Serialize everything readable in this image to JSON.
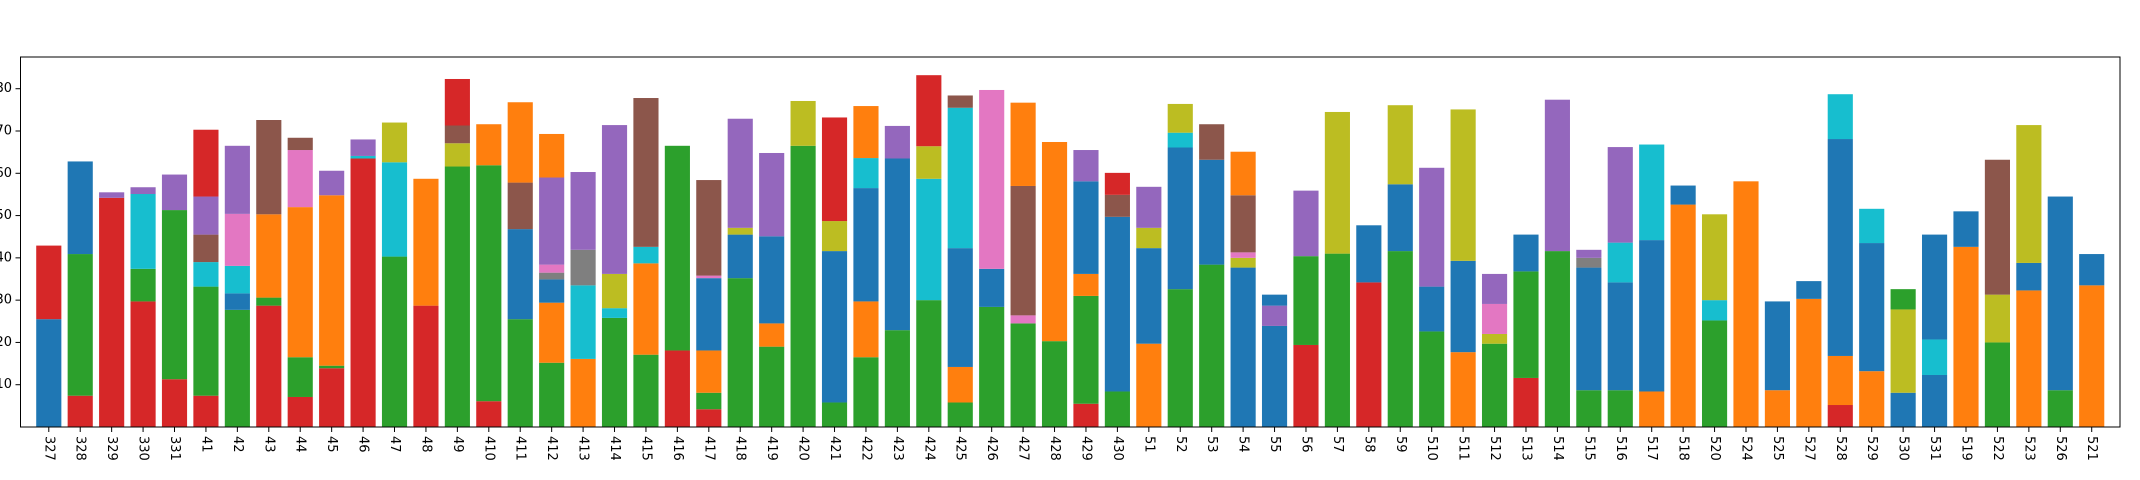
{
  "chart_data": {
    "type": "stacked_bar",
    "categories": [
      "327",
      "328",
      "329",
      "330",
      "331",
      "41",
      "42",
      "43",
      "44",
      "45",
      "46",
      "47",
      "48",
      "49",
      "410",
      "411",
      "412",
      "413",
      "414",
      "415",
      "416",
      "417",
      "418",
      "419",
      "420",
      "421",
      "422",
      "423",
      "424",
      "425",
      "426",
      "427",
      "428",
      "429",
      "430",
      "51",
      "52",
      "53",
      "54",
      "55",
      "56",
      "57",
      "58",
      "59",
      "510",
      "511",
      "512",
      "513",
      "514",
      "515",
      "516",
      "517",
      "518",
      "520",
      "524",
      "525",
      "527",
      "528",
      "529",
      "530",
      "531",
      "519",
      "522",
      "523",
      "526",
      "521"
    ],
    "segments": [
      [
        {
          "color": "#1f77b4",
          "value": 25.5
        },
        {
          "color": "#d62728",
          "value": 17.4
        }
      ],
      [
        {
          "color": "#d62728",
          "value": 7.4
        },
        {
          "color": "#2ca02c",
          "value": 33.5
        },
        {
          "color": "#1f77b4",
          "value": 21.9
        }
      ],
      [
        {
          "color": "#d62728",
          "value": 54.2
        },
        {
          "color": "#9467bd",
          "value": 1.3
        }
      ],
      [
        {
          "color": "#d62728",
          "value": 29.7
        },
        {
          "color": "#2ca02c",
          "value": 7.7
        },
        {
          "color": "#17becf",
          "value": 17.7
        },
        {
          "color": "#9467bd",
          "value": 1.6
        }
      ],
      [
        {
          "color": "#d62728",
          "value": 11.3
        },
        {
          "color": "#2ca02c",
          "value": 40
        },
        {
          "color": "#9467bd",
          "value": 8.4
        }
      ],
      [
        {
          "color": "#d62728",
          "value": 7.4
        },
        {
          "color": "#2ca02c",
          "value": 25.8
        },
        {
          "color": "#17becf",
          "value": 5.8
        },
        {
          "color": "#8c564b",
          "value": 6.5
        },
        {
          "color": "#9467bd",
          "value": 9
        },
        {
          "color": "#d62728",
          "value": 15.8
        }
      ],
      [
        {
          "color": "#2ca02c",
          "value": 27.7
        },
        {
          "color": "#1f77b4",
          "value": 3.9
        },
        {
          "color": "#17becf",
          "value": 6.5
        },
        {
          "color": "#e377c2",
          "value": 12.3
        },
        {
          "color": "#9467bd",
          "value": 16.1
        }
      ],
      [
        {
          "color": "#d62728",
          "value": 28.7
        },
        {
          "color": "#2ca02c",
          "value": 1.9
        },
        {
          "color": "#ff7f0e",
          "value": 19.7
        },
        {
          "color": "#8c564b",
          "value": 22.3
        }
      ],
      [
        {
          "color": "#d62728",
          "value": 7.1
        },
        {
          "color": "#2ca02c",
          "value": 9.4
        },
        {
          "color": "#ff7f0e",
          "value": 35.5
        },
        {
          "color": "#e377c2",
          "value": 13.5
        },
        {
          "color": "#8c564b",
          "value": 2.9
        }
      ],
      [
        {
          "color": "#d62728",
          "value": 13.9
        },
        {
          "color": "#2ca02c",
          "value": 0.6
        },
        {
          "color": "#ff7f0e",
          "value": 40.3
        },
        {
          "color": "#9467bd",
          "value": 5.8
        }
      ],
      [
        {
          "color": "#d62728",
          "value": 63.5
        },
        {
          "color": "#17becf",
          "value": 0.6
        },
        {
          "color": "#9467bd",
          "value": 3.9
        }
      ],
      [
        {
          "color": "#2ca02c",
          "value": 40.3
        },
        {
          "color": "#17becf",
          "value": 22.3
        },
        {
          "color": "#bcbd22",
          "value": 9.4
        }
      ],
      [
        {
          "color": "#d62728",
          "value": 28.7
        },
        {
          "color": "#ff7f0e",
          "value": 30
        }
      ],
      [
        {
          "color": "#2ca02c",
          "value": 61.6
        },
        {
          "color": "#bcbd22",
          "value": 5.5
        },
        {
          "color": "#8c564b",
          "value": 4.2
        },
        {
          "color": "#d62728",
          "value": 11
        }
      ],
      [
        {
          "color": "#d62728",
          "value": 6.1
        },
        {
          "color": "#2ca02c",
          "value": 55.8
        },
        {
          "color": "#ff7f0e",
          "value": 9.7
        }
      ],
      [
        {
          "color": "#2ca02c",
          "value": 25.5
        },
        {
          "color": "#1f77b4",
          "value": 21.3
        },
        {
          "color": "#8c564b",
          "value": 11
        },
        {
          "color": "#ff7f0e",
          "value": 19
        }
      ],
      [
        {
          "color": "#2ca02c",
          "value": 15.2
        },
        {
          "color": "#ff7f0e",
          "value": 14.2
        },
        {
          "color": "#1f77b4",
          "value": 5.5
        },
        {
          "color": "#7f7f7f",
          "value": 1.6
        },
        {
          "color": "#e377c2",
          "value": 1.9
        },
        {
          "color": "#9467bd",
          "value": 20.6
        },
        {
          "color": "#ff7f0e",
          "value": 10.3
        }
      ],
      [
        {
          "color": "#ff7f0e",
          "value": 16.1
        },
        {
          "color": "#17becf",
          "value": 17.4
        },
        {
          "color": "#7f7f7f",
          "value": 8.4
        },
        {
          "color": "#9467bd",
          "value": 18.4
        }
      ],
      [
        {
          "color": "#2ca02c",
          "value": 25.8
        },
        {
          "color": "#17becf",
          "value": 2.3
        },
        {
          "color": "#bcbd22",
          "value": 8.1
        },
        {
          "color": "#9467bd",
          "value": 35.2
        }
      ],
      [
        {
          "color": "#2ca02c",
          "value": 17.1
        },
        {
          "color": "#ff7f0e",
          "value": 21.6
        },
        {
          "color": "#17becf",
          "value": 3.9
        },
        {
          "color": "#8c564b",
          "value": 35.2
        }
      ],
      [
        {
          "color": "#d62728",
          "value": 18.1
        },
        {
          "color": "#2ca02c",
          "value": 48.4
        }
      ],
      [
        {
          "color": "#d62728",
          "value": 4.2
        },
        {
          "color": "#2ca02c",
          "value": 3.9
        },
        {
          "color": "#ff7f0e",
          "value": 10
        },
        {
          "color": "#1f77b4",
          "value": 17.1
        },
        {
          "color": "#e377c2",
          "value": 0.6
        },
        {
          "color": "#8c564b",
          "value": 22.6
        }
      ],
      [
        {
          "color": "#2ca02c",
          "value": 35.2
        },
        {
          "color": "#1f77b4",
          "value": 10.3
        },
        {
          "color": "#bcbd22",
          "value": 1.6
        },
        {
          "color": "#9467bd",
          "value": 25.8
        }
      ],
      [
        {
          "color": "#2ca02c",
          "value": 19
        },
        {
          "color": "#ff7f0e",
          "value": 5.5
        },
        {
          "color": "#1f77b4",
          "value": 20.6
        },
        {
          "color": "#9467bd",
          "value": 19.7
        }
      ],
      [
        {
          "color": "#2ca02c",
          "value": 66.5
        },
        {
          "color": "#bcbd22",
          "value": 10.6
        }
      ],
      [
        {
          "color": "#2ca02c",
          "value": 5.8
        },
        {
          "color": "#1f77b4",
          "value": 35.8
        },
        {
          "color": "#bcbd22",
          "value": 7.1
        },
        {
          "color": "#d62728",
          "value": 24.5
        }
      ],
      [
        {
          "color": "#2ca02c",
          "value": 16.5
        },
        {
          "color": "#ff7f0e",
          "value": 13.2
        },
        {
          "color": "#1f77b4",
          "value": 26.8
        },
        {
          "color": "#17becf",
          "value": 7.1
        },
        {
          "color": "#ff7f0e",
          "value": 12.3
        }
      ],
      [
        {
          "color": "#2ca02c",
          "value": 22.9
        },
        {
          "color": "#1f77b4",
          "value": 40.6
        },
        {
          "color": "#9467bd",
          "value": 7.7
        }
      ],
      [
        {
          "color": "#2ca02c",
          "value": 30
        },
        {
          "color": "#17becf",
          "value": 28.7
        },
        {
          "color": "#bcbd22",
          "value": 7.7
        },
        {
          "color": "#d62728",
          "value": 16.8
        }
      ],
      [
        {
          "color": "#2ca02c",
          "value": 5.8
        },
        {
          "color": "#ff7f0e",
          "value": 8.4
        },
        {
          "color": "#1f77b4",
          "value": 28.1
        },
        {
          "color": "#17becf",
          "value": 33.2
        },
        {
          "color": "#8c564b",
          "value": 2.9
        }
      ],
      [
        {
          "color": "#2ca02c",
          "value": 28.4
        },
        {
          "color": "#1f77b4",
          "value": 9
        },
        {
          "color": "#e377c2",
          "value": 42.3
        }
      ],
      [
        {
          "color": "#2ca02c",
          "value": 24.5
        },
        {
          "color": "#e377c2",
          "value": 1.9
        },
        {
          "color": "#8c564b",
          "value": 30.6
        },
        {
          "color": "#ff7f0e",
          "value": 19.7
        }
      ],
      [
        {
          "color": "#2ca02c",
          "value": 20.3
        },
        {
          "color": "#ff7f0e",
          "value": 47.1
        }
      ],
      [
        {
          "color": "#d62728",
          "value": 5.5
        },
        {
          "color": "#2ca02c",
          "value": 25.5
        },
        {
          "color": "#ff7f0e",
          "value": 5.2
        },
        {
          "color": "#1f77b4",
          "value": 21.9
        },
        {
          "color": "#9467bd",
          "value": 7.4
        }
      ],
      [
        {
          "color": "#2ca02c",
          "value": 8.4
        },
        {
          "color": "#1f77b4",
          "value": 41.3
        },
        {
          "color": "#8c564b",
          "value": 5.2
        },
        {
          "color": "#d62728",
          "value": 5.2
        }
      ],
      [
        {
          "color": "#ff7f0e",
          "value": 19.7
        },
        {
          "color": "#1f77b4",
          "value": 22.6
        },
        {
          "color": "#bcbd22",
          "value": 4.8
        },
        {
          "color": "#9467bd",
          "value": 9.7
        }
      ],
      [
        {
          "color": "#2ca02c",
          "value": 32.6
        },
        {
          "color": "#1f77b4",
          "value": 33.5
        },
        {
          "color": "#17becf",
          "value": 3.5
        },
        {
          "color": "#bcbd22",
          "value": 6.8
        }
      ],
      [
        {
          "color": "#2ca02c",
          "value": 38.4
        },
        {
          "color": "#1f77b4",
          "value": 24.8
        },
        {
          "color": "#8c564b",
          "value": 8.4
        }
      ],
      [
        {
          "color": "#1f77b4",
          "value": 37.7
        },
        {
          "color": "#bcbd22",
          "value": 2.3
        },
        {
          "color": "#e377c2",
          "value": 1.3
        },
        {
          "color": "#8c564b",
          "value": 13.5
        },
        {
          "color": "#ff7f0e",
          "value": 10.3
        }
      ],
      [
        {
          "color": "#1f77b4",
          "value": 23.9
        },
        {
          "color": "#9467bd",
          "value": 4.8
        },
        {
          "color": "#1f77b4",
          "value": 2.6
        }
      ],
      [
        {
          "color": "#d62728",
          "value": 19.4
        },
        {
          "color": "#2ca02c",
          "value": 21
        },
        {
          "color": "#9467bd",
          "value": 15.5
        }
      ],
      [
        {
          "color": "#2ca02c",
          "value": 41
        },
        {
          "color": "#bcbd22",
          "value": 33.5
        }
      ],
      [
        {
          "color": "#d62728",
          "value": 34.2
        },
        {
          "color": "#1f77b4",
          "value": 13.5
        }
      ],
      [
        {
          "color": "#2ca02c",
          "value": 41.6
        },
        {
          "color": "#1f77b4",
          "value": 15.8
        },
        {
          "color": "#bcbd22",
          "value": 18.7
        }
      ],
      [
        {
          "color": "#2ca02c",
          "value": 22.6
        },
        {
          "color": "#1f77b4",
          "value": 10.6
        },
        {
          "color": "#9467bd",
          "value": 28.1
        }
      ],
      [
        {
          "color": "#ff7f0e",
          "value": 17.7
        },
        {
          "color": "#1f77b4",
          "value": 21.6
        },
        {
          "color": "#bcbd22",
          "value": 35.8
        }
      ],
      [
        {
          "color": "#2ca02c",
          "value": 19.7
        },
        {
          "color": "#bcbd22",
          "value": 2.3
        },
        {
          "color": "#e377c2",
          "value": 7.1
        },
        {
          "color": "#9467bd",
          "value": 7.1
        }
      ],
      [
        {
          "color": "#d62728",
          "value": 11.6
        },
        {
          "color": "#2ca02c",
          "value": 25.2
        },
        {
          "color": "#1f77b4",
          "value": 8.7
        }
      ],
      [
        {
          "color": "#2ca02c",
          "value": 41.6
        },
        {
          "color": "#9467bd",
          "value": 35.8
        }
      ],
      [
        {
          "color": "#2ca02c",
          "value": 8.7
        },
        {
          "color": "#1f77b4",
          "value": 29
        },
        {
          "color": "#7f7f7f",
          "value": 2.3
        },
        {
          "color": "#9467bd",
          "value": 1.9
        }
      ],
      [
        {
          "color": "#2ca02c",
          "value": 8.7
        },
        {
          "color": "#1f77b4",
          "value": 25.5
        },
        {
          "color": "#17becf",
          "value": 9.4
        },
        {
          "color": "#9467bd",
          "value": 22.6
        }
      ],
      [
        {
          "color": "#ff7f0e",
          "value": 8.4
        },
        {
          "color": "#1f77b4",
          "value": 35.8
        },
        {
          "color": "#17becf",
          "value": 22.6
        }
      ],
      [
        {
          "color": "#ff7f0e",
          "value": 52.6
        },
        {
          "color": "#1f77b4",
          "value": 4.5
        }
      ],
      [
        {
          "color": "#2ca02c",
          "value": 25.2
        },
        {
          "color": "#17becf",
          "value": 4.8
        },
        {
          "color": "#bcbd22",
          "value": 20.3
        }
      ],
      [
        {
          "color": "#ff7f0e",
          "value": 58.1
        }
      ],
      [
        {
          "color": "#ff7f0e",
          "value": 8.7
        },
        {
          "color": "#1f77b4",
          "value": 21
        }
      ],
      [
        {
          "color": "#ff7f0e",
          "value": 30.3
        },
        {
          "color": "#1f77b4",
          "value": 4.2
        }
      ],
      [
        {
          "color": "#d62728",
          "value": 5.2
        },
        {
          "color": "#ff7f0e",
          "value": 11.6
        },
        {
          "color": "#1f77b4",
          "value": 51.3
        },
        {
          "color": "#17becf",
          "value": 10.6
        }
      ],
      [
        {
          "color": "#ff7f0e",
          "value": 13.2
        },
        {
          "color": "#1f77b4",
          "value": 30.3
        },
        {
          "color": "#17becf",
          "value": 8.1
        }
      ],
      [
        {
          "color": "#1f77b4",
          "value": 8.1
        },
        {
          "color": "#bcbd22",
          "value": 19.7
        },
        {
          "color": "#2ca02c",
          "value": 4.8
        }
      ],
      [
        {
          "color": "#1f77b4",
          "value": 12.3
        },
        {
          "color": "#17becf",
          "value": 8.4
        },
        {
          "color": "#1f77b4",
          "value": 24.8
        }
      ],
      [
        {
          "color": "#ff7f0e",
          "value": 42.6
        },
        {
          "color": "#1f77b4",
          "value": 8.4
        }
      ],
      [
        {
          "color": "#2ca02c",
          "value": 20
        },
        {
          "color": "#bcbd22",
          "value": 11.3
        },
        {
          "color": "#8c564b",
          "value": 31.9
        }
      ],
      [
        {
          "color": "#ff7f0e",
          "value": 32.3
        },
        {
          "color": "#1f77b4",
          "value": 6.5
        },
        {
          "color": "#bcbd22",
          "value": 32.6
        }
      ],
      [
        {
          "color": "#2ca02c",
          "value": 8.7
        },
        {
          "color": "#1f77b4",
          "value": 45.8
        }
      ],
      [
        {
          "color": "#ff7f0e",
          "value": 33.5
        },
        {
          "color": "#1f77b4",
          "value": 7.4
        }
      ]
    ],
    "ylim": [
      0,
      87.5
    ],
    "yticks": [
      10,
      20,
      30,
      40,
      50,
      60,
      70,
      80
    ]
  }
}
